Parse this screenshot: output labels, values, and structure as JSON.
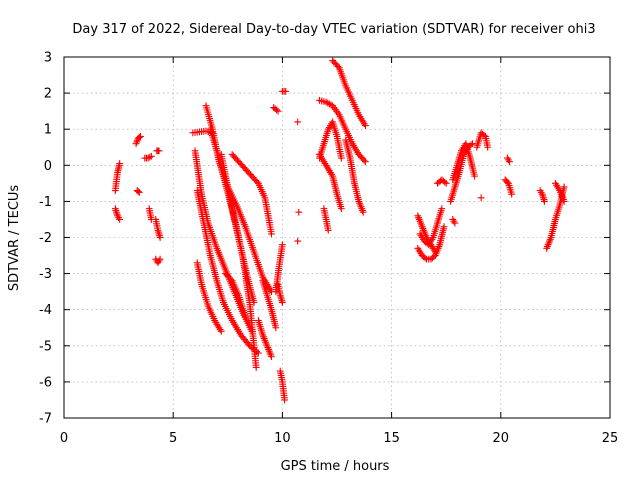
{
  "chart_data": {
    "type": "scatter",
    "title": "Day 317 of 2022, Sidereal Day-to-day VTEC variation (SDTVAR) for receiver ohi3",
    "xlabel": "GPS time / hours",
    "ylabel": "SDTVAR / TECUs",
    "xlim": [
      0,
      25
    ],
    "ylim": [
      -7,
      3
    ],
    "xticks": [
      0,
      5,
      10,
      15,
      20,
      25
    ],
    "yticks": [
      -7,
      -6,
      -5,
      -4,
      -3,
      -2,
      -1,
      0,
      1,
      2,
      3
    ],
    "grid": true,
    "marker": "+",
    "color": "#ff0000",
    "segments": [
      {
        "x": [
          2.35,
          2.45,
          2.55
        ],
        "y": [
          -0.7,
          -0.2,
          0.05
        ]
      },
      {
        "x": [
          2.35,
          2.45,
          2.55
        ],
        "y": [
          -1.2,
          -1.4,
          -1.5
        ]
      },
      {
        "x": [
          3.3,
          3.4,
          3.5
        ],
        "y": [
          0.6,
          0.75,
          0.8
        ]
      },
      {
        "x": [
          3.35,
          3.45
        ],
        "y": [
          -0.7,
          -0.75
        ]
      },
      {
        "x": [
          3.7,
          3.85,
          4.0
        ],
        "y": [
          0.2,
          0.2,
          0.25
        ]
      },
      {
        "x": [
          3.9,
          4.0
        ],
        "y": [
          -1.2,
          -1.5
        ]
      },
      {
        "x": [
          4.25,
          4.35
        ],
        "y": [
          0.4,
          0.4
        ]
      },
      {
        "x": [
          4.2,
          4.3,
          4.4
        ],
        "y": [
          -1.5,
          -1.8,
          -2.0
        ]
      },
      {
        "x": [
          4.2,
          4.3,
          4.4
        ],
        "y": [
          -2.6,
          -2.7,
          -2.6
        ]
      },
      {
        "x": [
          5.9,
          6.5,
          6.8
        ],
        "y": [
          0.9,
          0.95,
          0.9
        ]
      },
      {
        "x": [
          6.5,
          6.8,
          7.1,
          7.5,
          7.9,
          8.3,
          8.7,
          9.1,
          9.5
        ],
        "y": [
          1.65,
          1.0,
          0.1,
          -0.6,
          -1.1,
          -1.7,
          -2.4,
          -3.1,
          -3.5
        ]
      },
      {
        "x": [
          6.0,
          6.3,
          6.6,
          7.0,
          7.4,
          7.8,
          8.2,
          8.6
        ],
        "y": [
          0.4,
          -0.8,
          -1.6,
          -2.3,
          -2.9,
          -3.5,
          -4.1,
          -4.6
        ]
      },
      {
        "x": [
          6.1,
          6.4,
          6.7,
          7.0,
          7.3,
          7.7,
          8.1,
          8.5,
          8.9
        ],
        "y": [
          -0.7,
          -1.6,
          -2.5,
          -3.2,
          -3.8,
          -4.3,
          -4.7,
          -5.0,
          -5.2
        ]
      },
      {
        "x": [
          6.1,
          6.3,
          6.6,
          6.9,
          7.2
        ],
        "y": [
          -2.7,
          -3.3,
          -3.9,
          -4.3,
          -4.6
        ]
      },
      {
        "x": [
          6.7,
          7.0,
          7.3,
          7.6,
          7.9,
          8.2,
          8.5,
          8.8
        ],
        "y": [
          1.0,
          0.4,
          -0.3,
          -1.0,
          -1.7,
          -2.6,
          -3.8,
          -5.6
        ]
      },
      {
        "x": [
          7.2,
          7.5,
          7.8,
          8.1,
          8.4,
          8.7
        ],
        "y": [
          0.3,
          -0.6,
          -1.5,
          -2.3,
          -3.1,
          -3.8
        ]
      },
      {
        "x": [
          7.7,
          8.0,
          8.3,
          8.6,
          8.9,
          9.2,
          9.5
        ],
        "y": [
          0.3,
          0.1,
          -0.1,
          -0.3,
          -0.5,
          -0.9,
          -1.9
        ]
      },
      {
        "x": [
          7.4,
          7.7,
          8.0,
          8.3
        ],
        "y": [
          -3.0,
          -3.2,
          -3.6,
          -4.2
        ]
      },
      {
        "x": [
          8.9,
          9.1,
          9.3,
          9.5
        ],
        "y": [
          -4.3,
          -4.7,
          -5.0,
          -5.3
        ]
      },
      {
        "x": [
          9.1,
          9.3,
          9.5,
          9.7
        ],
        "y": [
          -3.2,
          -3.6,
          -4.0,
          -4.5
        ]
      },
      {
        "x": [
          9.7,
          9.85,
          10.0
        ],
        "y": [
          -3.5,
          -2.8,
          -2.2
        ]
      },
      {
        "x": [
          9.8,
          9.9,
          10.0
        ],
        "y": [
          -3.3,
          -3.6,
          -3.8
        ]
      },
      {
        "x": [
          9.9,
          10.0,
          10.1
        ],
        "y": [
          -5.7,
          -6.0,
          -6.5
        ]
      },
      {
        "x": [
          9.6,
          9.8
        ],
        "y": [
          1.6,
          1.5
        ]
      },
      {
        "x": [
          10.0,
          10.15
        ],
        "y": [
          2.05,
          2.05
        ]
      },
      {
        "x": [
          10.7
        ],
        "y": [
          1.2
        ]
      },
      {
        "x": [
          10.75
        ],
        "y": [
          -1.3
        ]
      },
      {
        "x": [
          10.7
        ],
        "y": [
          -2.1
        ]
      },
      {
        "x": [
          12.3,
          12.6,
          12.9,
          13.2,
          13.5,
          13.8
        ],
        "y": [
          2.9,
          2.7,
          2.2,
          1.8,
          1.4,
          1.1
        ]
      },
      {
        "x": [
          11.7,
          12.0,
          12.3,
          12.6,
          12.9,
          13.2,
          13.5,
          13.8
        ],
        "y": [
          1.8,
          1.75,
          1.65,
          1.4,
          1.0,
          0.6,
          0.3,
          0.1
        ]
      },
      {
        "x": [
          11.7,
          11.9,
          12.1,
          12.3,
          12.5,
          12.7
        ],
        "y": [
          0.2,
          0.6,
          1.0,
          1.2,
          0.8,
          0.2
        ]
      },
      {
        "x": [
          11.7,
          12.0,
          12.3,
          12.5,
          12.7
        ],
        "y": [
          0.3,
          0.0,
          -0.3,
          -0.8,
          -1.2
        ]
      },
      {
        "x": [
          12.9,
          13.1,
          13.3,
          13.5,
          13.7
        ],
        "y": [
          0.7,
          0.2,
          -0.5,
          -1.0,
          -1.3
        ]
      },
      {
        "x": [
          11.9,
          12.0,
          12.1
        ],
        "y": [
          -1.2,
          -1.5,
          -1.8
        ]
      },
      {
        "x": [
          16.2,
          16.4,
          16.6,
          16.8,
          17.0
        ],
        "y": [
          -1.4,
          -1.7,
          -2.0,
          -2.2,
          -2.4
        ]
      },
      {
        "x": [
          16.2,
          16.4,
          16.6,
          16.8,
          17.0,
          17.2,
          17.4
        ],
        "y": [
          -2.3,
          -2.5,
          -2.6,
          -2.6,
          -2.5,
          -2.2,
          -1.7
        ]
      },
      {
        "x": [
          16.3,
          16.5,
          16.7,
          16.9,
          17.1,
          17.3
        ],
        "y": [
          -1.9,
          -2.1,
          -2.2,
          -2.0,
          -1.6,
          -1.2
        ]
      },
      {
        "x": [
          17.1,
          17.3,
          17.5
        ],
        "y": [
          -0.5,
          -0.4,
          -0.5
        ]
      },
      {
        "x": [
          17.8,
          18.0,
          18.2,
          18.4,
          18.6,
          18.8
        ],
        "y": [
          -0.4,
          0.0,
          0.4,
          0.6,
          0.2,
          -0.3
        ]
      },
      {
        "x": [
          17.7,
          17.9,
          18.1,
          18.3,
          18.5,
          18.7
        ],
        "y": [
          -1.0,
          -0.6,
          -0.2,
          0.3,
          0.5,
          0.6
        ]
      },
      {
        "x": [
          17.8,
          17.9
        ],
        "y": [
          -1.5,
          -1.6
        ]
      },
      {
        "x": [
          18.9,
          19.1,
          19.3,
          19.4
        ],
        "y": [
          0.5,
          0.9,
          0.8,
          0.5
        ]
      },
      {
        "x": [
          19.1
        ],
        "y": [
          -0.9
        ]
      },
      {
        "x": [
          20.3,
          20.4
        ],
        "y": [
          0.2,
          0.1
        ]
      },
      {
        "x": [
          20.2,
          20.35,
          20.5
        ],
        "y": [
          -0.4,
          -0.5,
          -0.8
        ]
      },
      {
        "x": [
          21.8,
          21.9,
          22.0
        ],
        "y": [
          -0.7,
          -0.8,
          -1.0
        ]
      },
      {
        "x": [
          22.1,
          22.3,
          22.5,
          22.7,
          22.9
        ],
        "y": [
          -2.3,
          -2.0,
          -1.5,
          -1.1,
          -0.6
        ]
      },
      {
        "x": [
          22.5,
          22.7,
          22.9
        ],
        "y": [
          -0.5,
          -0.7,
          -1.0
        ]
      }
    ]
  }
}
